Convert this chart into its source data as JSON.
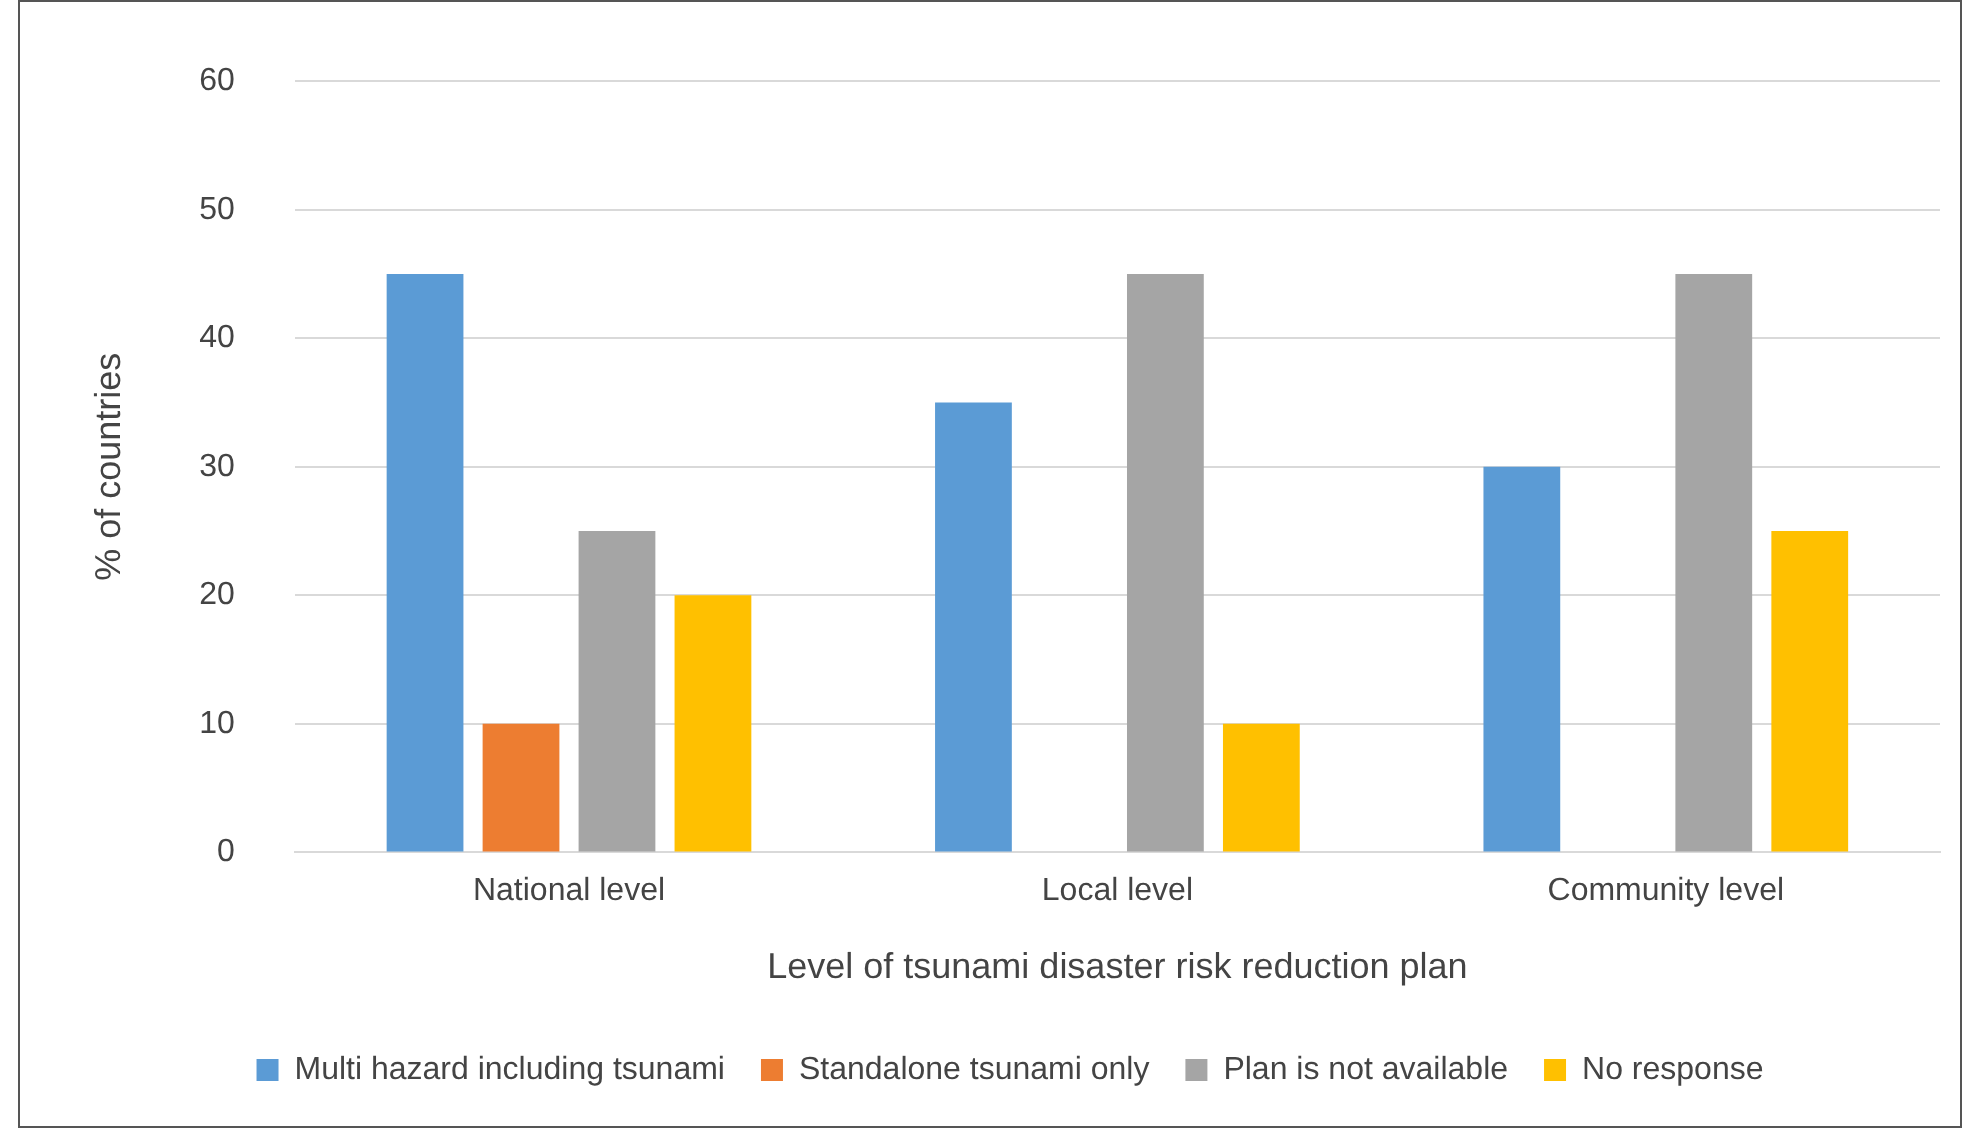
{
  "chart_data": {
    "type": "bar",
    "xlabel": "Level of tsunami disaster risk reduction plan",
    "ylabel": "% of countries",
    "categories": [
      "National level",
      "Local level",
      "Community level"
    ],
    "series": [
      {
        "name": "Multi hazard including tsunami",
        "color": "#5b9bd5",
        "values": [
          45,
          35,
          30
        ]
      },
      {
        "name": "Standalone tsunami only",
        "color": "#ed7d31",
        "values": [
          10,
          0,
          0
        ]
      },
      {
        "name": "Plan is not available",
        "color": "#a5a5a5",
        "values": [
          25,
          45,
          45
        ]
      },
      {
        "name": "No response",
        "color": "#ffc000",
        "values": [
          20,
          10,
          25
        ]
      }
    ],
    "ylim": [
      0,
      60
    ],
    "yticks": [
      0,
      10,
      20,
      30,
      40,
      50,
      60
    ],
    "grid": "y",
    "legend": "bottom"
  }
}
